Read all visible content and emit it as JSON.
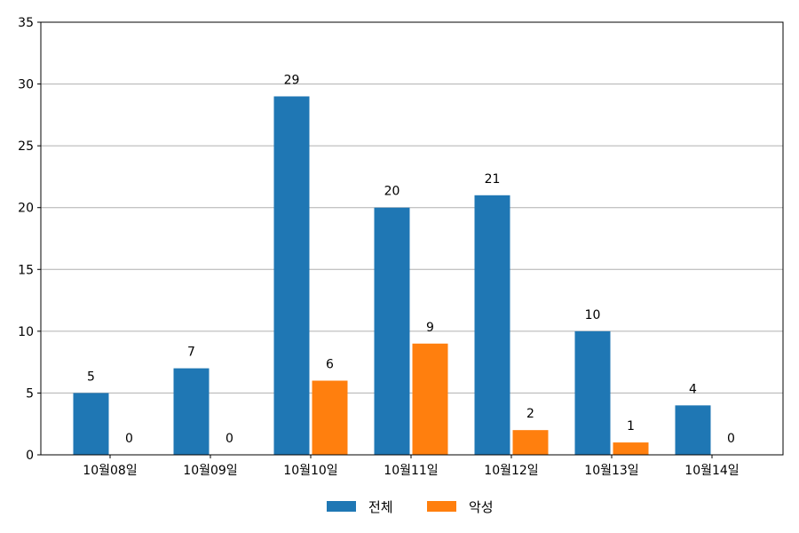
{
  "chart_data": {
    "type": "bar",
    "categories": [
      "10월08일",
      "10월09일",
      "10월10일",
      "10월11일",
      "10월12일",
      "10월13일",
      "10월14일"
    ],
    "series": [
      {
        "name": "전체",
        "values": [
          5,
          7,
          29,
          20,
          21,
          10,
          4
        ],
        "color": "#1f77b4"
      },
      {
        "name": "악성",
        "values": [
          0,
          0,
          6,
          9,
          2,
          1,
          0
        ],
        "color": "#ff7f0e"
      }
    ],
    "ylim": [
      0,
      35
    ],
    "yticks": [
      0,
      5,
      10,
      15,
      20,
      25,
      30,
      35
    ],
    "grid": "horizontal",
    "legend_position": "bottom-center",
    "data_labels": true
  }
}
